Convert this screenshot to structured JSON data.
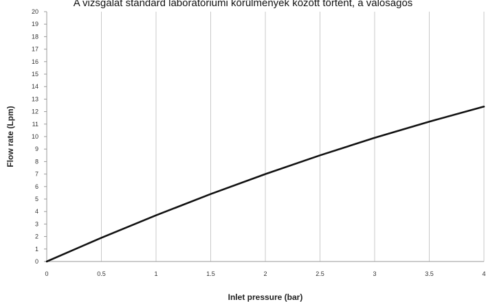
{
  "header": {
    "caption": "A vizsgálat standard laboratóriumi körülmények között történt, a valóságos"
  },
  "chart_data": {
    "type": "line",
    "xlabel": "Inlet pressure (bar)",
    "ylabel": "Flow rate (Lpm)",
    "xlim": [
      0,
      4
    ],
    "ylim": [
      0,
      20
    ],
    "x_ticks": [
      "0",
      "0.5",
      "1",
      "1.5",
      "2",
      "2.5",
      "3",
      "3.5",
      "4"
    ],
    "y_ticks": [
      "0",
      "1",
      "2",
      "3",
      "4",
      "5",
      "6",
      "7",
      "8",
      "9",
      "10",
      "11",
      "12",
      "13",
      "14",
      "15",
      "16",
      "17",
      "18",
      "19",
      "20"
    ],
    "grid": true,
    "colors": {
      "line": "#111111",
      "grid": "#c8c8c8",
      "axis": "#999999"
    },
    "series": [
      {
        "x": [
          0,
          0.5,
          1,
          1.5,
          2,
          2.5,
          3,
          3.5,
          4
        ],
        "values": [
          0,
          1.9,
          3.7,
          5.4,
          7.0,
          8.5,
          9.9,
          11.2,
          12.4
        ]
      }
    ]
  }
}
